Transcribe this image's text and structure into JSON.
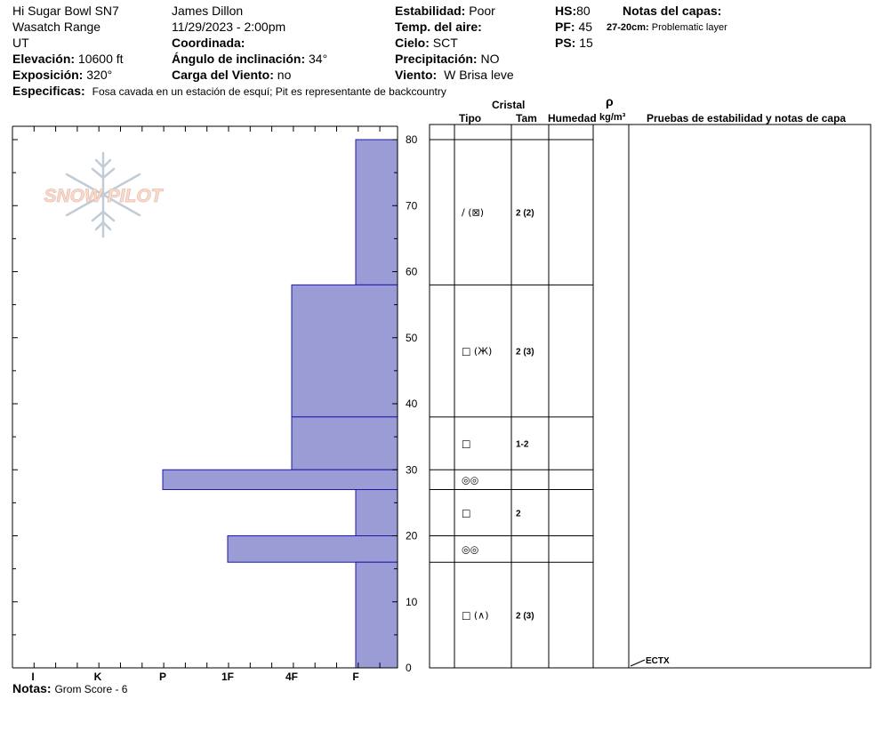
{
  "header": {
    "site": "Hi Sugar Bowl SN7",
    "range": "Wasatch Range",
    "state": "UT",
    "elevation_label": "Elevación:",
    "elevation_value": "10600 ft",
    "aspect_label": "Exposición:",
    "aspect_value": "320°",
    "specifics_label": "Especificas:",
    "specifics_value": "Fosa cavada en un estación de esquí; Pit es representante de backcountry",
    "observer": "James Dillon",
    "datetime": "11/29/2023 - 2:00pm",
    "coord_label": "Coordinada:",
    "slope_label": "Ángulo de inclinación:",
    "slope_value": "34°",
    "wind_load_label": "Carga del Viento:",
    "wind_load_value": "no",
    "stability_label": "Estabilidad:",
    "stability_value": "Poor",
    "air_temp_label": "Temp. del aire:",
    "sky_label": "Cielo:",
    "sky_value": "SCT",
    "precip_label": "Precipitación:",
    "precip_value": "NO",
    "wind_label": "Viento:",
    "wind_value": "W Brisa leve",
    "hs_label": "HS:",
    "hs_value": "80",
    "pf_label": "PF:",
    "pf_value": "45",
    "ps_label": "PS:",
    "ps_value": "15",
    "layer_notes_label": "Notas del capas:",
    "layer_note_depth": "27-20cm:",
    "layer_note_text": "Problematic layer"
  },
  "columns": {
    "crystal": "Cristal",
    "type": "Tipo",
    "size": "Tam",
    "moisture": "Humedad",
    "rho": "ρ",
    "density_unit": "kg/m³",
    "tests": "Pruebas de estabilidad y notas de capa"
  },
  "footer": {
    "notes_label": "Notas:",
    "notes_value": "Grom Score - 6"
  },
  "logo_text": "SNOW PILOT",
  "chart_data": {
    "type": "bar",
    "orientation": "horizontal",
    "y_axis": {
      "range": [
        0,
        80
      ],
      "ticks": [
        0,
        10,
        20,
        30,
        40,
        50,
        60,
        70,
        80
      ]
    },
    "x_axis": {
      "categories": [
        "I",
        "K",
        "P",
        "1F",
        "4F",
        "F"
      ],
      "direction": "hardness increases leftward"
    },
    "bar_color": "#9b9bd6",
    "bar_edge": "#1a1aa8",
    "layers": [
      {
        "top": 80,
        "bottom": 58,
        "hardness": "F",
        "crystal": "/ (⊠)",
        "size": "2 (2)"
      },
      {
        "top": 58,
        "bottom": 38,
        "hardness": "4F",
        "crystal": "□ (Ж)",
        "size": "2 (3)"
      },
      {
        "top": 38,
        "bottom": 30,
        "hardness": "4F",
        "crystal": "□",
        "size": "1-2"
      },
      {
        "top": 30,
        "bottom": 27,
        "hardness": "P",
        "crystal": "◎◎",
        "size": ""
      },
      {
        "top": 27,
        "bottom": 20,
        "hardness": "F",
        "crystal": "□",
        "size": "2"
      },
      {
        "top": 20,
        "bottom": 16,
        "hardness": "1F",
        "crystal": "◎◎",
        "size": ""
      },
      {
        "top": 16,
        "bottom": 0,
        "hardness": "F",
        "crystal": "□ (∧)",
        "size": "2 (3)"
      }
    ],
    "tests": [
      {
        "depth": 0,
        "label": "ECTX"
      }
    ]
  }
}
